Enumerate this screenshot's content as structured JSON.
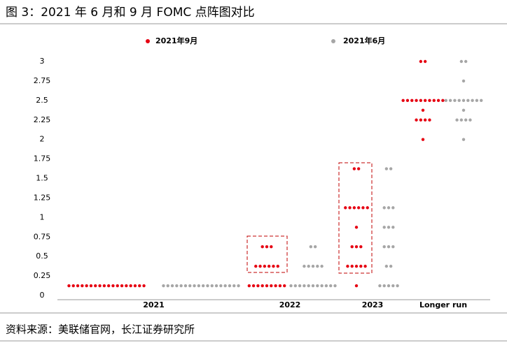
{
  "chart_data": {
    "type": "dot",
    "title": "图 3：2021 年 6 月和 9 月 FOMC 点阵图对比",
    "source": "资料来源：美联储官网，长江证券研究所",
    "categories": [
      "2021",
      "2022",
      "2023",
      "Longer run"
    ],
    "ylim": [
      0,
      3
    ],
    "yticks": [
      0,
      0.25,
      0.5,
      0.75,
      1,
      1.25,
      1.5,
      1.75,
      2,
      2.25,
      2.5,
      2.75,
      3
    ],
    "series": [
      {
        "name": "2021年9月",
        "color": "#e60012",
        "dots": [
          [
            {
              "rate": 0.125,
              "count": 18
            }
          ],
          [
            {
              "rate": 0.125,
              "count": 9
            },
            {
              "rate": 0.375,
              "count": 6
            },
            {
              "rate": 0.625,
              "count": 3
            }
          ],
          [
            {
              "rate": 0.125,
              "count": 1
            },
            {
              "rate": 0.375,
              "count": 5
            },
            {
              "rate": 0.625,
              "count": 3
            },
            {
              "rate": 0.875,
              "count": 1
            },
            {
              "rate": 1.125,
              "count": 6
            },
            {
              "rate": 1.625,
              "count": 2
            }
          ],
          [
            {
              "rate": 2.0,
              "count": 1
            },
            {
              "rate": 2.25,
              "count": 4
            },
            {
              "rate": 2.375,
              "count": 1
            },
            {
              "rate": 2.5,
              "count": 10
            },
            {
              "rate": 3.0,
              "count": 2
            }
          ]
        ]
      },
      {
        "name": "2021年6月",
        "color": "#a6a6a6",
        "dots": [
          [
            {
              "rate": 0.125,
              "count": 18
            }
          ],
          [
            {
              "rate": 0.125,
              "count": 11
            },
            {
              "rate": 0.375,
              "count": 5
            },
            {
              "rate": 0.625,
              "count": 2
            }
          ],
          [
            {
              "rate": 0.125,
              "count": 5
            },
            {
              "rate": 0.375,
              "count": 2
            },
            {
              "rate": 0.625,
              "count": 3
            },
            {
              "rate": 0.875,
              "count": 3
            },
            {
              "rate": 1.125,
              "count": 3
            },
            {
              "rate": 1.625,
              "count": 2
            }
          ],
          [
            {
              "rate": 2.0,
              "count": 1
            },
            {
              "rate": 2.25,
              "count": 4
            },
            {
              "rate": 2.375,
              "count": 1
            },
            {
              "rate": 2.5,
              "count": 9
            },
            {
              "rate": 2.75,
              "count": 1
            },
            {
              "rate": 3.0,
              "count": 2
            }
          ]
        ]
      }
    ]
  }
}
